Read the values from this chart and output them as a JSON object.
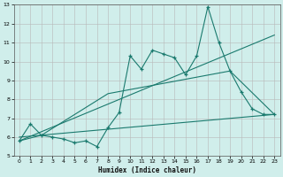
{
  "xlabel": "Humidex (Indice chaleur)",
  "x": [
    0,
    1,
    2,
    3,
    4,
    5,
    6,
    7,
    8,
    9,
    10,
    11,
    12,
    13,
    14,
    15,
    16,
    17,
    18,
    19,
    20,
    21,
    22,
    23
  ],
  "line1": [
    5.8,
    6.7,
    6.1,
    6.0,
    5.9,
    5.7,
    5.8,
    5.5,
    6.5,
    7.3,
    10.3,
    9.6,
    10.6,
    10.4,
    10.2,
    9.3,
    10.3,
    12.9,
    11.0,
    9.5,
    8.4,
    7.5,
    7.2,
    7.2
  ],
  "line2_x": [
    0,
    2,
    8,
    19,
    23
  ],
  "line2_y": [
    5.8,
    6.1,
    8.3,
    9.5,
    7.2
  ],
  "line3_x": [
    0,
    23
  ],
  "line3_y": [
    6.0,
    7.2
  ],
  "line4_x": [
    0,
    23
  ],
  "line4_y": [
    5.8,
    11.4
  ],
  "color": "#1a7a6e",
  "bg_color": "#d0eeeb",
  "grid_color": "#b8b8b8",
  "ylim": [
    5,
    13
  ],
  "xlim": [
    -0.5,
    23.5
  ],
  "yticks": [
    5,
    6,
    7,
    8,
    9,
    10,
    11,
    12,
    13
  ],
  "xticks": [
    0,
    1,
    2,
    3,
    4,
    5,
    6,
    7,
    8,
    9,
    10,
    11,
    12,
    13,
    14,
    15,
    16,
    17,
    18,
    19,
    20,
    21,
    22,
    23
  ]
}
